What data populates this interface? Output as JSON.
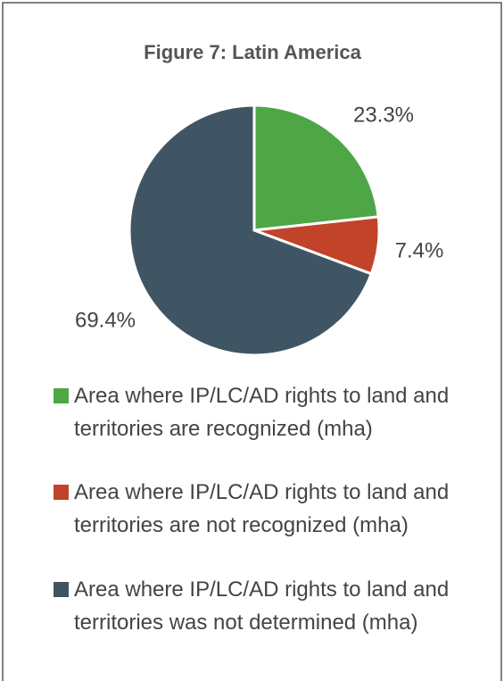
{
  "chart_data": {
    "type": "pie",
    "title": "Figure 7: Latin America",
    "categories": [
      "Area where IP/LC/AD rights to land and territories are recognized (mha)",
      "Area where IP/LC/AD rights to land and territories are not recognized (mha)",
      "Area where IP/LC/AD rights to land and territories was not determined (mha)"
    ],
    "values": [
      23.3,
      7.4,
      69.4
    ],
    "value_labels": [
      "23.3%",
      "7.4%",
      "69.4%"
    ],
    "colors": [
      "#4ea647",
      "#c0432a",
      "#3f5564"
    ]
  }
}
